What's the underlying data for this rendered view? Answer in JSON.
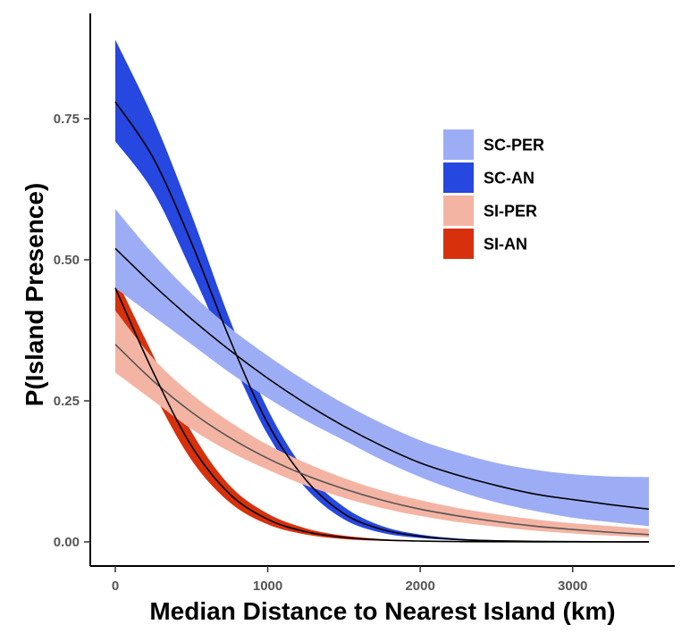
{
  "chart_data": {
    "type": "line",
    "xlabel": "Median Distance to Nearest Island (km)",
    "ylabel": "P(Island Presence)",
    "xlim": [
      0,
      3500
    ],
    "ylim": [
      0,
      0.85
    ],
    "x_ticks": [
      0,
      1000,
      2000,
      3000
    ],
    "x_tick_labels": [
      "0",
      "1000",
      "2000",
      "3000"
    ],
    "y_ticks": [
      0,
      0.25,
      0.5,
      0.75
    ],
    "y_tick_labels": [
      "0.00",
      "0.25",
      "0.50",
      "0.75"
    ],
    "grid": false,
    "legend_position": "top-right",
    "x": [
      0,
      250,
      500,
      750,
      1000,
      1250,
      1500,
      1750,
      2000,
      2250,
      2500,
      2750,
      3000,
      3250,
      3500
    ],
    "series": [
      {
        "name": "SC-PER",
        "color": "#9dadf5",
        "line_color": "#000000",
        "fit": [
          0.52,
          0.455,
          0.395,
          0.34,
          0.29,
          0.245,
          0.205,
          0.17,
          0.14,
          0.118,
          0.1,
          0.085,
          0.075,
          0.066,
          0.058
        ],
        "lower": [
          0.45,
          0.4,
          0.35,
          0.3,
          0.255,
          0.215,
          0.18,
          0.145,
          0.115,
          0.09,
          0.07,
          0.055,
          0.043,
          0.035,
          0.028
        ],
        "upper": [
          0.59,
          0.51,
          0.44,
          0.38,
          0.33,
          0.285,
          0.245,
          0.21,
          0.18,
          0.158,
          0.14,
          0.128,
          0.12,
          0.116,
          0.115
        ]
      },
      {
        "name": "SC-AN",
        "color": "#2647e0",
        "line_color": "#000000",
        "fit": [
          0.78,
          0.68,
          0.53,
          0.36,
          0.21,
          0.11,
          0.05,
          0.022,
          0.01,
          0.004,
          0.002,
          0.001,
          0.0005,
          0.0002,
          0.0001
        ],
        "lower": [
          0.71,
          0.62,
          0.48,
          0.33,
          0.19,
          0.095,
          0.04,
          0.016,
          0.007,
          0.003,
          0.001,
          0.0005,
          0.0002,
          0.0001,
          0.0
        ],
        "upper": [
          0.89,
          0.75,
          0.58,
          0.395,
          0.235,
          0.125,
          0.062,
          0.028,
          0.013,
          0.006,
          0.003,
          0.0015,
          0.0007,
          0.0003,
          0.0002
        ]
      },
      {
        "name": "SI-PER",
        "color": "#f4b4a4",
        "line_color": "#555555",
        "fit": [
          0.35,
          0.285,
          0.23,
          0.185,
          0.148,
          0.118,
          0.094,
          0.074,
          0.058,
          0.046,
          0.036,
          0.028,
          0.022,
          0.017,
          0.013
        ],
        "lower": [
          0.3,
          0.25,
          0.2,
          0.16,
          0.128,
          0.1,
          0.078,
          0.06,
          0.046,
          0.035,
          0.027,
          0.02,
          0.015,
          0.011,
          0.008
        ],
        "upper": [
          0.41,
          0.325,
          0.262,
          0.213,
          0.172,
          0.14,
          0.113,
          0.091,
          0.074,
          0.06,
          0.049,
          0.04,
          0.033,
          0.028,
          0.023
        ]
      },
      {
        "name": "SI-AN",
        "color": "#d7300d",
        "line_color": "#000000",
        "fit": [
          0.45,
          0.3,
          0.17,
          0.085,
          0.04,
          0.018,
          0.008,
          0.0035,
          0.0015,
          0.0006,
          0.0003,
          0.0001,
          0.0,
          0.0,
          0.0
        ],
        "lower": [
          0.41,
          0.265,
          0.145,
          0.07,
          0.031,
          0.013,
          0.005,
          0.002,
          0.0008,
          0.0003,
          0.0001,
          0.0,
          0.0,
          0.0,
          0.0
        ],
        "upper": [
          0.47,
          0.33,
          0.195,
          0.1,
          0.05,
          0.024,
          0.011,
          0.005,
          0.0022,
          0.001,
          0.0004,
          0.0002,
          0.0001,
          0.0,
          0.0
        ]
      }
    ]
  }
}
